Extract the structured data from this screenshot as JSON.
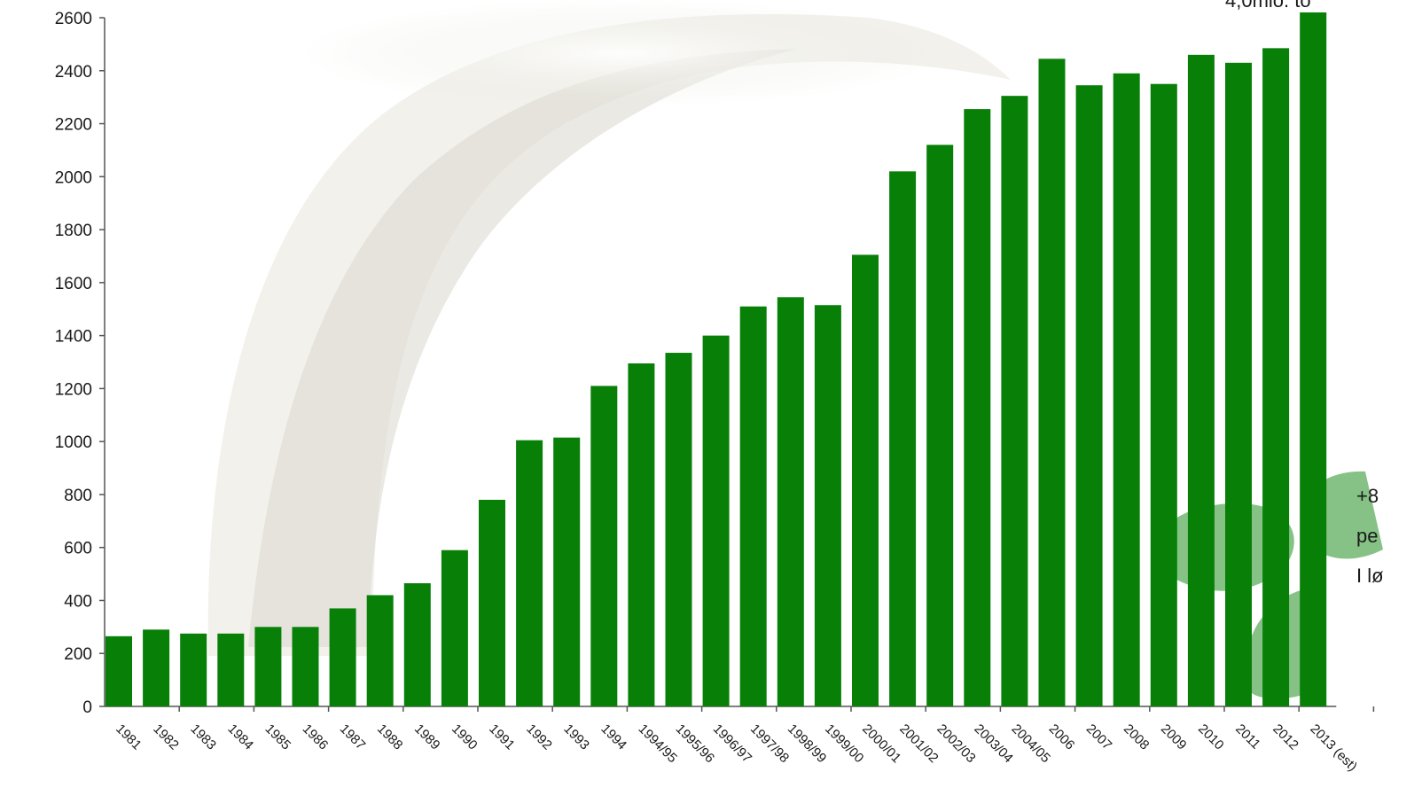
{
  "chart_data": {
    "type": "bar",
    "title": "",
    "xlabel": "",
    "ylabel": "",
    "ylim": [
      0,
      2600
    ],
    "yticks": [
      0,
      200,
      400,
      600,
      800,
      1000,
      1200,
      1400,
      1600,
      1800,
      2000,
      2200,
      2400,
      2600
    ],
    "grid": false,
    "colors": {
      "bar": "#088008",
      "axis": "#555555",
      "leaf": "#86c286"
    },
    "categories": [
      "1981",
      "1982",
      "1983",
      "1984",
      "1985",
      "1986",
      "1987",
      "1988",
      "1989",
      "1990",
      "1991",
      "1992",
      "1993",
      "1994",
      "1994/95",
      "1995/96",
      "1996/97",
      "1997/98",
      "1998/99",
      "1999/00",
      "2000/01",
      "2001/02",
      "2002/03",
      "2003/04",
      "2004/05",
      "2006",
      "2007",
      "2008",
      "2009",
      "2010",
      "2011",
      "2012",
      "2013 (est)"
    ],
    "values": [
      265,
      290,
      275,
      275,
      300,
      300,
      370,
      420,
      465,
      590,
      780,
      1005,
      1015,
      1210,
      1295,
      1335,
      1400,
      1510,
      1545,
      1515,
      1705,
      2020,
      2120,
      2255,
      2305,
      2445,
      2345,
      2390,
      2350,
      2460,
      2430,
      2485,
      2620
    ],
    "annotations": [
      {
        "id": "top",
        "text": "4,0mio. to"
      },
      {
        "id": "lines",
        "lines": [
          "+8",
          "pe",
          "I lø"
        ]
      }
    ]
  }
}
